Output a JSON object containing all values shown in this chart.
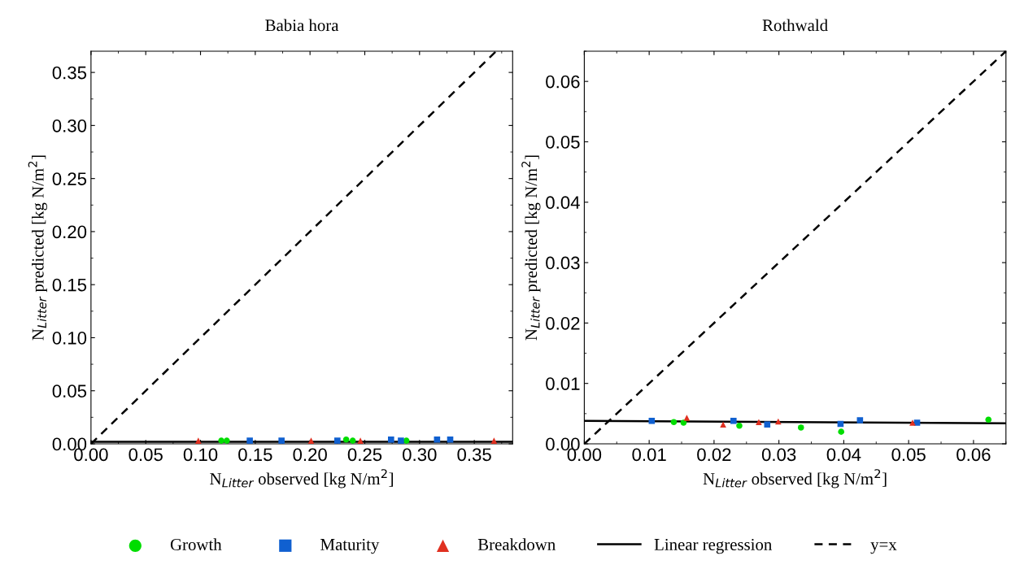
{
  "chart_data": [
    {
      "type": "scatter",
      "title": "Babia hora",
      "xlabel": "N$_{Litter}$ observed [kg N/m$^{2}$]",
      "ylabel": "N$_{Litter}$ predicted [kg N/m$^{2}$]",
      "xlim": [
        0,
        0.385
      ],
      "ylim": [
        0,
        0.37
      ],
      "xticks": [
        {
          "value": 0,
          "label": "0.00"
        },
        {
          "value": 0.05,
          "label": "0.05"
        },
        {
          "value": 0.1,
          "label": "0.10"
        },
        {
          "value": 0.15,
          "label": "0.15"
        },
        {
          "value": 0.2,
          "label": "0.20"
        },
        {
          "value": 0.25,
          "label": "0.25"
        },
        {
          "value": 0.3,
          "label": "0.30"
        },
        {
          "value": 0.35,
          "label": "0.35"
        }
      ],
      "yticks": [
        {
          "value": 0,
          "label": "0.00"
        },
        {
          "value": 0.05,
          "label": "0.05"
        },
        {
          "value": 0.1,
          "label": "0.10"
        },
        {
          "value": 0.15,
          "label": "0.15"
        },
        {
          "value": 0.2,
          "label": "0.20"
        },
        {
          "value": 0.25,
          "label": "0.25"
        },
        {
          "value": 0.3,
          "label": "0.30"
        },
        {
          "value": 0.35,
          "label": "0.35"
        }
      ],
      "grid": false,
      "legend": "bottom",
      "series": [
        {
          "name": "Growth",
          "color": "#00dd00",
          "marker": "circle",
          "x": [
            0.119,
            0.124,
            0.233,
            0.239,
            0.288
          ],
          "values": [
            0.003,
            0.003,
            0.004,
            0.003,
            0.003
          ]
        },
        {
          "name": "Maturity",
          "color": "#1060d0",
          "marker": "square",
          "x": [
            0.145,
            0.174,
            0.225,
            0.274,
            0.283,
            0.316,
            0.328
          ],
          "values": [
            0.003,
            0.003,
            0.003,
            0.004,
            0.003,
            0.004,
            0.004
          ]
        },
        {
          "name": "Breakdown",
          "color": "#e03020",
          "marker": "triangle",
          "x": [
            0.098,
            0.201,
            0.246,
            0.368
          ],
          "values": [
            0.003,
            0.003,
            0.003,
            0.003
          ]
        },
        {
          "name": "Linear regression",
          "type": "line",
          "color": "#000000",
          "line_style": "solid",
          "marker": "none",
          "x": [
            0,
            0.385
          ],
          "values": [
            0.002,
            0.002
          ]
        },
        {
          "name": "y=x",
          "type": "line",
          "color": "#000000",
          "line_style": "dashed",
          "marker": "none",
          "x": [
            0,
            0.37
          ],
          "values": [
            0,
            0.37
          ]
        }
      ]
    },
    {
      "type": "scatter",
      "title": "Rothwald",
      "xlabel": "N$_{Litter}$ observed [kg N/m$^{2}$]",
      "ylabel": "N$_{Litter}$ predicted [kg N/m$^{2}$]",
      "xlim": [
        0,
        0.065
      ],
      "ylim": [
        0,
        0.065
      ],
      "xticks": [
        {
          "value": 0,
          "label": "0.00"
        },
        {
          "value": 0.01,
          "label": "0.01"
        },
        {
          "value": 0.02,
          "label": "0.02"
        },
        {
          "value": 0.03,
          "label": "0.03"
        },
        {
          "value": 0.04,
          "label": "0.04"
        },
        {
          "value": 0.05,
          "label": "0.05"
        },
        {
          "value": 0.06,
          "label": "0.06"
        }
      ],
      "yticks": [
        {
          "value": 0,
          "label": "0.00"
        },
        {
          "value": 0.01,
          "label": "0.01"
        },
        {
          "value": 0.02,
          "label": "0.02"
        },
        {
          "value": 0.03,
          "label": "0.03"
        },
        {
          "value": 0.04,
          "label": "0.04"
        },
        {
          "value": 0.05,
          "label": "0.05"
        },
        {
          "value": 0.06,
          "label": "0.06"
        }
      ],
      "grid": false,
      "series": [
        {
          "color": "#00dd00",
          "marker": "circle",
          "x": [
            0.0138,
            0.0153,
            0.0239,
            0.0334,
            0.0396,
            0.0623
          ],
          "values": [
            0.0036,
            0.0035,
            0.003,
            0.0027,
            0.002,
            0.004
          ]
        },
        {
          "color": "#1060d0",
          "marker": "square",
          "x": [
            0.0104,
            0.023,
            0.0282,
            0.0395,
            0.0425,
            0.0513
          ],
          "values": [
            0.0038,
            0.0038,
            0.0032,
            0.0033,
            0.0039,
            0.0035
          ]
        },
        {
          "color": "#e03020",
          "marker": "triangle",
          "x": [
            0.0158,
            0.0214,
            0.0269,
            0.0299,
            0.0506
          ],
          "values": [
            0.0043,
            0.0032,
            0.0036,
            0.0037,
            0.0035
          ]
        },
        {
          "type": "line",
          "color": "#000000",
          "line_style": "solid",
          "marker": "none",
          "x": [
            0,
            0.065
          ],
          "values": [
            0.0038,
            0.0034
          ]
        },
        {
          "type": "line",
          "color": "#000000",
          "line_style": "dashed",
          "marker": "none",
          "x": [
            0,
            0.065
          ],
          "values": [
            0,
            0.065
          ]
        }
      ]
    }
  ]
}
